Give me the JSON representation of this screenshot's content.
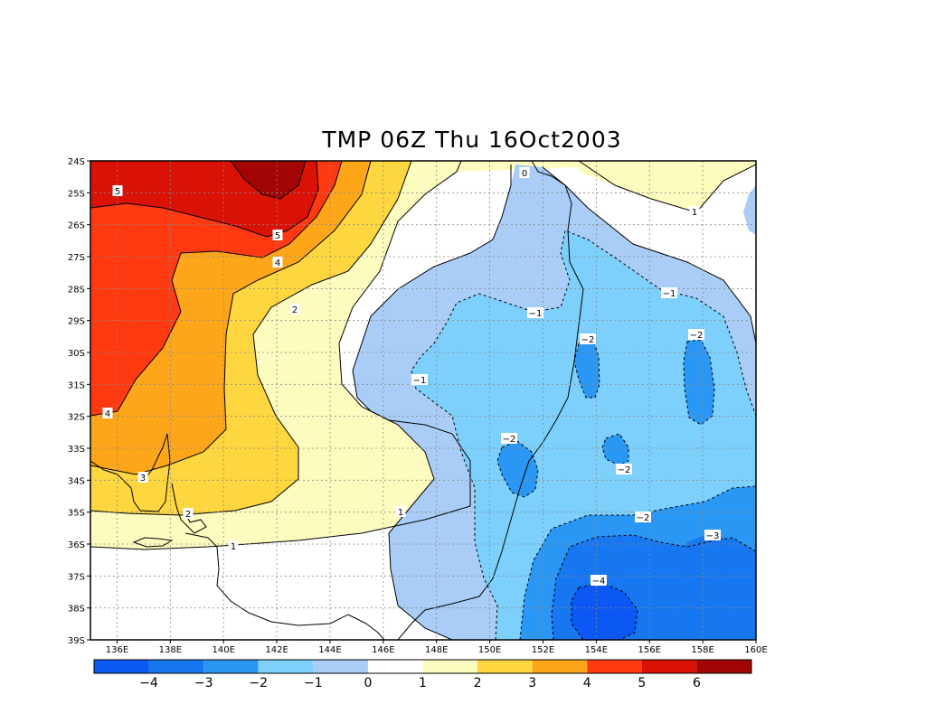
{
  "map": {
    "title": "TMP 06Z Thu 16Oct2003",
    "variable": "TMP",
    "lat_ticks": [
      "24S",
      "25S",
      "26S",
      "27S",
      "28S",
      "29S",
      "30S",
      "31S",
      "32S",
      "33S",
      "34S",
      "35S",
      "36S",
      "37S",
      "38S",
      "39S"
    ],
    "lon_ticks": [
      "136E",
      "138E",
      "140E",
      "142E",
      "144E",
      "146E",
      "148E",
      "150E",
      "152E",
      "154E",
      "156E",
      "158E",
      "160E"
    ],
    "lat_range": [
      -39,
      -24
    ],
    "lon_range": [
      135,
      160
    ],
    "grid": true
  },
  "colorbar": {
    "colors": [
      "#0b58f5",
      "#1677f0",
      "#2a97f5",
      "#7dd0fb",
      "#a9cdf7",
      "#ffffff",
      "#fdfcbf",
      "#fdd640",
      "#fea61a",
      "#ff3a10",
      "#da1206",
      "#a30505"
    ],
    "labels": [
      "−4",
      "−3",
      "−2",
      "−1",
      "0",
      "1",
      "2",
      "3",
      "4",
      "5",
      "6"
    ]
  },
  "contour_labels": [
    {
      "text": "5"
    },
    {
      "text": "5"
    },
    {
      "text": "4"
    },
    {
      "text": "4"
    },
    {
      "text": "3"
    },
    {
      "text": "2"
    },
    {
      "text": "2"
    },
    {
      "text": "1"
    },
    {
      "text": "1"
    },
    {
      "text": "1"
    },
    {
      "text": "0"
    },
    {
      "text": "−1"
    },
    {
      "text": "−1"
    },
    {
      "text": "−1"
    },
    {
      "text": "−2"
    },
    {
      "text": "−2"
    },
    {
      "text": "−2"
    },
    {
      "text": "−2"
    },
    {
      "text": "−2"
    },
    {
      "text": "−3"
    },
    {
      "text": "−4"
    }
  ]
}
